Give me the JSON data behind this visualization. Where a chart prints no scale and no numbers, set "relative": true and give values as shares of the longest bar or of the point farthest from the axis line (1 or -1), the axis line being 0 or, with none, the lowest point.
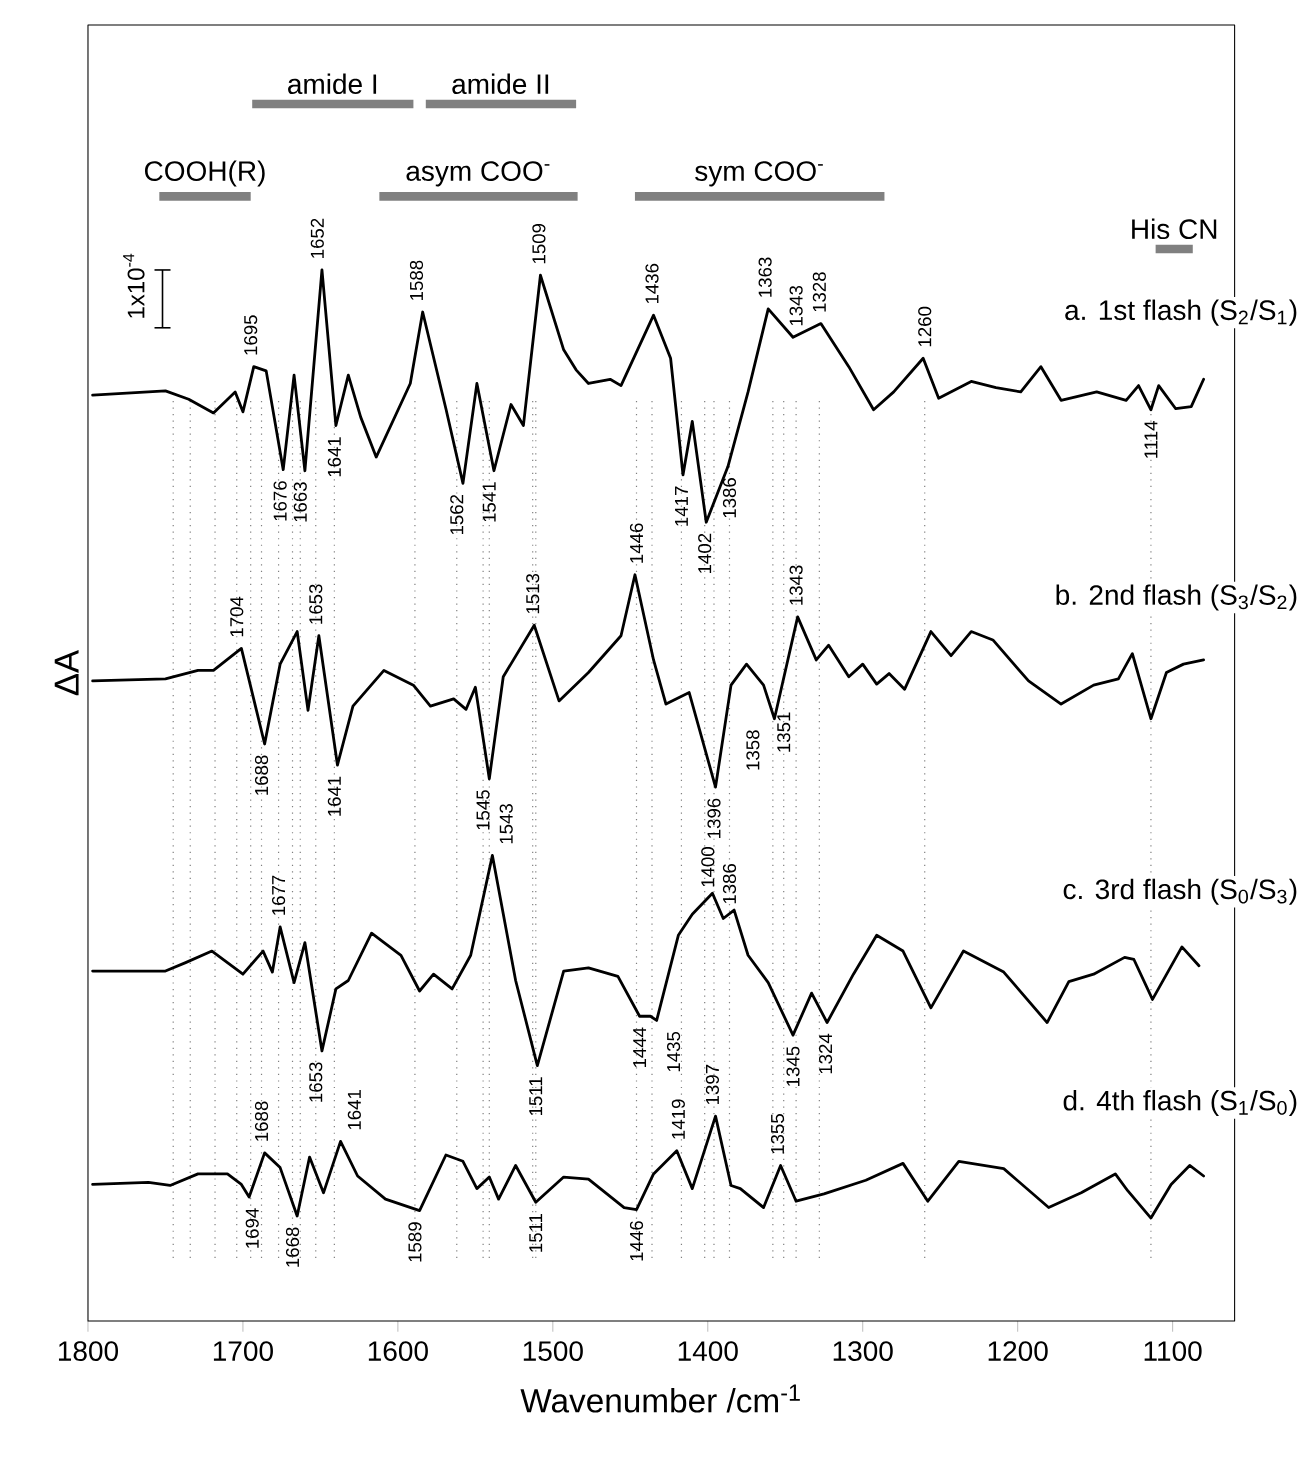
{
  "chart_data": {
    "type": "line",
    "relative": true,
    "xlabel": "Wavenumber /cm$^{-1}$",
    "ylabel": "ΔA",
    "xlim": [
      1800,
      1060
    ],
    "xticks": [
      1800,
      1700,
      1600,
      1500,
      1400,
      1300,
      1200,
      1100
    ],
    "marker": "none",
    "line_style": "solid",
    "series": [
      {
        "name": "a. 1st flash (S$_{2}$/S$_{1}$)",
        "color": "#000000",
        "x": [
          1797,
          1750,
          1735,
          1719,
          1705,
          1700,
          1693,
          1685,
          1674,
          1667,
          1660,
          1649,
          1640,
          1632,
          1624,
          1614,
          1592,
          1584,
          1569,
          1558,
          1549,
          1538,
          1527,
          1519,
          1508,
          1493,
          1485,
          1477,
          1463,
          1456,
          1435,
          1424,
          1416,
          1410,
          1401,
          1387,
          1374,
          1361,
          1345,
          1327,
          1309,
          1293,
          1280,
          1261,
          1251,
          1230,
          1214,
          1198,
          1185,
          1172,
          1149,
          1130,
          1122,
          1114,
          1109,
          1098,
          1088,
          1080
        ],
        "values": [
          0.881,
          0.885,
          0.877,
          0.864,
          0.884,
          0.865,
          0.908,
          0.904,
          0.81,
          0.9,
          0.809,
          1.0,
          0.852,
          0.9,
          0.86,
          0.822,
          0.892,
          0.96,
          0.868,
          0.797,
          0.892,
          0.809,
          0.872,
          0.852,
          0.995,
          0.924,
          0.905,
          0.892,
          0.896,
          0.89,
          0.957,
          0.916,
          0.805,
          0.856,
          0.76,
          0.813,
          0.884,
          0.963,
          0.936,
          0.949,
          0.908,
          0.867,
          0.884,
          0.916,
          0.878,
          0.894,
          0.888,
          0.884,
          0.908,
          0.876,
          0.884,
          0.876,
          0.89,
          0.867,
          0.89,
          0.868,
          0.87,
          0.896
        ]
      },
      {
        "name": "b. 2nd flash (S$_{3}$/S$_{2}$)",
        "color": "#000000",
        "x": [
          1797,
          1750,
          1729,
          1719,
          1701,
          1686,
          1676,
          1665,
          1658,
          1651,
          1639,
          1629,
          1609,
          1590,
          1579,
          1564,
          1556,
          1550,
          1541,
          1532,
          1512,
          1496,
          1477,
          1456,
          1447,
          1435,
          1427,
          1412,
          1395,
          1385,
          1375,
          1364,
          1357,
          1342,
          1330,
          1322,
          1309,
          1300,
          1291,
          1283,
          1273,
          1256,
          1243,
          1230,
          1216,
          1193,
          1172,
          1151,
          1135,
          1126,
          1114,
          1104,
          1093,
          1080
        ],
        "values": [
          0.609,
          0.611,
          0.619,
          0.619,
          0.64,
          0.549,
          0.625,
          0.656,
          0.581,
          0.652,
          0.529,
          0.585,
          0.619,
          0.605,
          0.585,
          0.592,
          0.582,
          0.603,
          0.516,
          0.613,
          0.662,
          0.59,
          0.617,
          0.652,
          0.71,
          0.629,
          0.587,
          0.598,
          0.508,
          0.605,
          0.625,
          0.605,
          0.573,
          0.67,
          0.629,
          0.643,
          0.613,
          0.625,
          0.606,
          0.616,
          0.601,
          0.656,
          0.633,
          0.656,
          0.648,
          0.609,
          0.587,
          0.605,
          0.611,
          0.635,
          0.573,
          0.617,
          0.625,
          0.629
        ]
      },
      {
        "name": "c. 3rd flash (S$_{0}$/S$_{3}$)",
        "color": "#000000",
        "x": [
          1797,
          1750,
          1737,
          1720,
          1700,
          1687,
          1681,
          1676,
          1667,
          1660,
          1649,
          1640,
          1632,
          1617,
          1598,
          1586,
          1577,
          1565,
          1553,
          1539,
          1524,
          1510,
          1493,
          1477,
          1458,
          1444,
          1437,
          1433,
          1419,
          1410,
          1397,
          1390,
          1383,
          1374,
          1361,
          1345,
          1333,
          1323,
          1306,
          1291,
          1274,
          1256,
          1235,
          1209,
          1181,
          1167,
          1151,
          1131,
          1125,
          1113,
          1094,
          1083
        ],
        "values": [
          0.333,
          0.333,
          0.341,
          0.352,
          0.33,
          0.352,
          0.332,
          0.375,
          0.322,
          0.36,
          0.257,
          0.316,
          0.324,
          0.369,
          0.348,
          0.314,
          0.33,
          0.316,
          0.348,
          0.443,
          0.324,
          0.243,
          0.333,
          0.336,
          0.328,
          0.29,
          0.29,
          0.286,
          0.367,
          0.387,
          0.407,
          0.383,
          0.391,
          0.348,
          0.322,
          0.272,
          0.312,
          0.284,
          0.33,
          0.367,
          0.352,
          0.298,
          0.352,
          0.332,
          0.284,
          0.323,
          0.33,
          0.346,
          0.344,
          0.306,
          0.356,
          0.338
        ]
      },
      {
        "name": "d. 4th flash (S$_{1}$/S$_{0}$)",
        "color": "#000000",
        "x": [
          1797,
          1761,
          1747,
          1729,
          1710,
          1701,
          1696,
          1686,
          1676,
          1665,
          1657,
          1648,
          1637,
          1626,
          1608,
          1586,
          1569,
          1558,
          1549,
          1541,
          1535,
          1524,
          1511,
          1493,
          1477,
          1454,
          1446,
          1435,
          1420,
          1410,
          1395,
          1385,
          1379,
          1364,
          1353,
          1343,
          1325,
          1298,
          1274,
          1258,
          1238,
          1209,
          1180,
          1159,
          1137,
          1129,
          1114,
          1101,
          1089,
          1080
        ],
        "values": [
          0.13,
          0.132,
          0.129,
          0.14,
          0.14,
          0.13,
          0.118,
          0.16,
          0.146,
          0.1,
          0.156,
          0.122,
          0.171,
          0.138,
          0.116,
          0.105,
          0.158,
          0.152,
          0.126,
          0.137,
          0.116,
          0.148,
          0.113,
          0.137,
          0.135,
          0.108,
          0.106,
          0.14,
          0.162,
          0.126,
          0.195,
          0.129,
          0.126,
          0.108,
          0.148,
          0.114,
          0.121,
          0.134,
          0.15,
          0.114,
          0.152,
          0.145,
          0.108,
          0.122,
          0.14,
          0.124,
          0.098,
          0.13,
          0.148,
          0.138
        ]
      }
    ],
    "ref_lines": [
      {
        "axis": "x",
        "value": 1745,
        "color": "#808080",
        "line_style": "dotted"
      },
      {
        "axis": "x",
        "value": 1734,
        "color": "#808080",
        "line_style": "dotted"
      },
      {
        "axis": "x",
        "value": 1718,
        "color": "#808080",
        "line_style": "dotted"
      },
      {
        "axis": "x",
        "value": 1704,
        "color": "#808080",
        "line_style": "dotted"
      },
      {
        "axis": "x",
        "value": 1695,
        "color": "#808080",
        "line_style": "dotted"
      },
      {
        "axis": "x",
        "value": 1688,
        "color": "#808080",
        "line_style": "dotted"
      },
      {
        "axis": "x",
        "value": 1677,
        "color": "#808080",
        "line_style": "dotted"
      },
      {
        "axis": "x",
        "value": 1668,
        "color": "#808080",
        "line_style": "dotted"
      },
      {
        "axis": "x",
        "value": 1663,
        "color": "#808080",
        "line_style": "dotted"
      },
      {
        "axis": "x",
        "value": 1653,
        "color": "#808080",
        "line_style": "dotted"
      },
      {
        "axis": "x",
        "value": 1641,
        "color": "#808080",
        "line_style": "dotted"
      },
      {
        "axis": "x",
        "value": 1589,
        "color": "#808080",
        "line_style": "dotted"
      },
      {
        "axis": "x",
        "value": 1562,
        "color": "#808080",
        "line_style": "dotted"
      },
      {
        "axis": "x",
        "value": 1545,
        "color": "#808080",
        "line_style": "dotted"
      },
      {
        "axis": "x",
        "value": 1541,
        "color": "#808080",
        "line_style": "dotted"
      },
      {
        "axis": "x",
        "value": 1513,
        "color": "#808080",
        "line_style": "dotted"
      },
      {
        "axis": "x",
        "value": 1511,
        "color": "#808080",
        "line_style": "dotted"
      },
      {
        "axis": "x",
        "value": 1446,
        "color": "#808080",
        "line_style": "dotted"
      },
      {
        "axis": "x",
        "value": 1436,
        "color": "#808080",
        "line_style": "dotted"
      },
      {
        "axis": "x",
        "value": 1417,
        "color": "#808080",
        "line_style": "dotted"
      },
      {
        "axis": "x",
        "value": 1402,
        "color": "#808080",
        "line_style": "dotted"
      },
      {
        "axis": "x",
        "value": 1396,
        "color": "#808080",
        "line_style": "dotted"
      },
      {
        "axis": "x",
        "value": 1386,
        "color": "#808080",
        "line_style": "dotted"
      },
      {
        "axis": "x",
        "value": 1358,
        "color": "#808080",
        "line_style": "dotted"
      },
      {
        "axis": "x",
        "value": 1351,
        "color": "#808080",
        "line_style": "dotted"
      },
      {
        "axis": "x",
        "value": 1343,
        "color": "#808080",
        "line_style": "dotted"
      },
      {
        "axis": "x",
        "value": 1328,
        "color": "#808080",
        "line_style": "dotted"
      },
      {
        "axis": "x",
        "value": 1260,
        "color": "#808080",
        "line_style": "dotted"
      },
      {
        "axis": "x",
        "value": 1114,
        "color": "#808080",
        "line_style": "dotted"
      }
    ],
    "annotations": [
      "1x10$^{-4}$",
      "COOH(R)",
      "asym COO$^{-}$",
      "sym COO$^{-}$",
      "His CN",
      "amide I",
      "amide II",
      {
        "text": "1695",
        "x": 1695,
        "y": 0.908
      },
      {
        "text": "1652",
        "x": 1652,
        "y": 1.0
      },
      {
        "text": "1588",
        "x": 1588,
        "y": 0.96
      },
      {
        "text": "1509",
        "x": 1509,
        "y": 0.995
      },
      {
        "text": "1436",
        "x": 1436,
        "y": 0.957
      },
      {
        "text": "1363",
        "x": 1363,
        "y": 0.963
      },
      {
        "text": "1343",
        "x": 1343,
        "y": 0.936
      },
      {
        "text": "1328",
        "x": 1328,
        "y": 0.949
      },
      {
        "text": "1260",
        "x": 1260,
        "y": 0.916
      },
      {
        "text": "1676",
        "x": 1676,
        "y": 0.81
      },
      {
        "text": "1663",
        "x": 1663,
        "y": 0.809
      },
      {
        "text": "1641",
        "x": 1641,
        "y": 0.852
      },
      {
        "text": "1562",
        "x": 1562,
        "y": 0.797
      },
      {
        "text": "1541",
        "x": 1541,
        "y": 0.809
      },
      {
        "text": "1417",
        "x": 1417,
        "y": 0.805
      },
      {
        "text": "1402",
        "x": 1402,
        "y": 0.76
      },
      {
        "text": "1386",
        "x": 1386,
        "y": 0.813
      },
      {
        "text": "1114",
        "x": 1114,
        "y": 0.867
      },
      {
        "text": "1351",
        "x": 1351,
        "y": 0.59
      },
      {
        "text": "1704",
        "x": 1704,
        "y": 0.64
      },
      {
        "text": "1653",
        "x": 1653,
        "y": 0.652
      },
      {
        "text": "1513",
        "x": 1513,
        "y": 0.662
      },
      {
        "text": "1446",
        "x": 1446,
        "y": 0.71
      },
      {
        "text": "1343",
        "x": 1343,
        "y": 0.67
      },
      {
        "text": "1688",
        "x": 1688,
        "y": 0.549
      },
      {
        "text": "1641",
        "x": 1641,
        "y": 0.529
      },
      {
        "text": "1545",
        "x": 1545,
        "y": 0.516
      },
      {
        "text": "1396",
        "x": 1396,
        "y": 0.508
      },
      {
        "text": "1358",
        "x": 1358,
        "y": 0.573
      },
      {
        "text": "1677",
        "x": 1677,
        "y": 0.375
      },
      {
        "text": "1543",
        "x": 1543,
        "y": 0.443
      },
      {
        "text": "1400",
        "x": 1400,
        "y": 0.402
      },
      {
        "text": "1386",
        "x": 1386,
        "y": 0.386
      },
      {
        "text": "1653",
        "x": 1653,
        "y": 0.257
      },
      {
        "text": "1511",
        "x": 1511,
        "y": 0.243
      },
      {
        "text": "1444",
        "x": 1444,
        "y": 0.29
      },
      {
        "text": "1435",
        "x": 1435,
        "y": 0.286
      },
      {
        "text": "1345",
        "x": 1345,
        "y": 0.272
      },
      {
        "text": "1324",
        "x": 1324,
        "y": 0.284
      },
      {
        "text": "1688",
        "x": 1688,
        "y": 0.16
      },
      {
        "text": "1641",
        "x": 1641,
        "y": 0.171
      },
      {
        "text": "1419",
        "x": 1419,
        "y": 0.162
      },
      {
        "text": "1397",
        "x": 1397,
        "y": 0.195
      },
      {
        "text": "1355",
        "x": 1355,
        "y": 0.148
      },
      {
        "text": "1694",
        "x": 1694,
        "y": 0.118
      },
      {
        "text": "1668",
        "x": 1668,
        "y": 0.1
      },
      {
        "text": "1589",
        "x": 1589,
        "y": 0.105
      },
      {
        "text": "1511",
        "x": 1511,
        "y": 0.113
      },
      {
        "text": "1446",
        "x": 1446,
        "y": 0.106
      }
    ]
  }
}
